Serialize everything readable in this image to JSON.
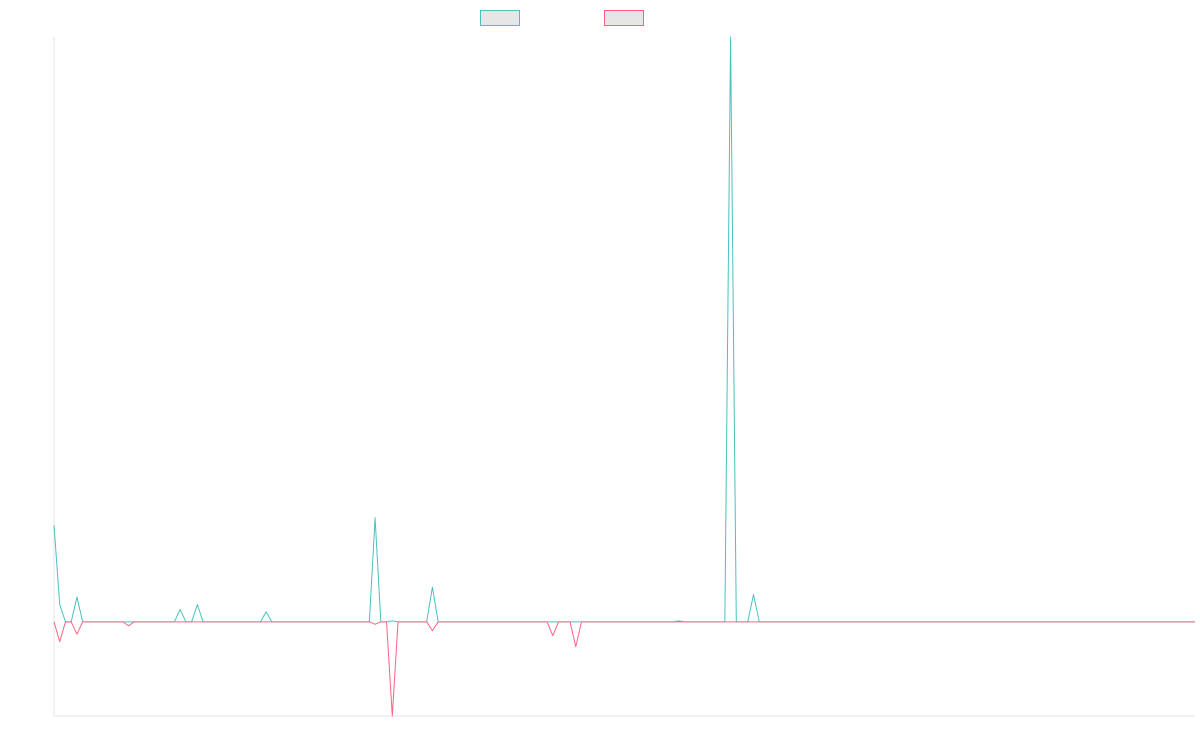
{
  "chart_data": {
    "type": "line",
    "title": "",
    "xlabel": "",
    "ylabel": "",
    "legend_position": "top-center",
    "grid": false,
    "axes_visible": true,
    "tick_labels_visible": false,
    "x_count": 200,
    "ylim": [
      -190,
      1180
    ],
    "series": [
      {
        "name": "",
        "color": "#4bc0c0",
        "points": [
          [
            0,
            195
          ],
          [
            1,
            35
          ],
          [
            4,
            50
          ],
          [
            22,
            25
          ],
          [
            25,
            35
          ],
          [
            37,
            20
          ],
          [
            56,
            210
          ],
          [
            59,
            2
          ],
          [
            66,
            70
          ],
          [
            109,
            2
          ],
          [
            118,
            1180
          ],
          [
            122,
            55
          ]
        ]
      },
      {
        "name": "",
        "color": "#ff6384",
        "points": [
          [
            1,
            -40
          ],
          [
            4,
            -25
          ],
          [
            13,
            -8
          ],
          [
            56,
            -5
          ],
          [
            59,
            -190
          ],
          [
            66,
            -18
          ],
          [
            87,
            -28
          ],
          [
            91,
            -50
          ]
        ]
      }
    ]
  }
}
